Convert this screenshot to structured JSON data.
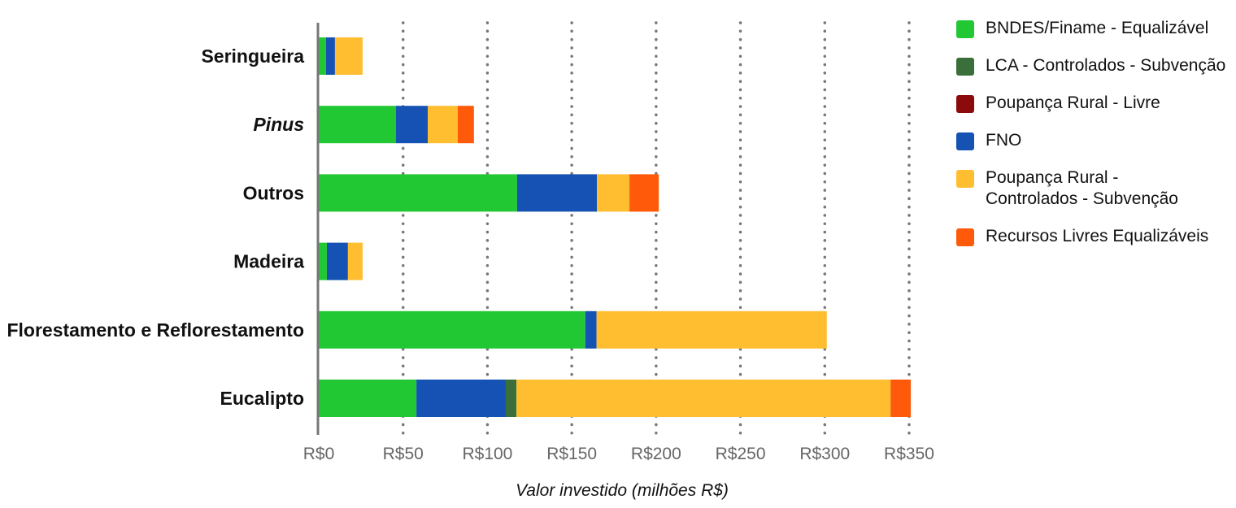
{
  "chart_data": {
    "type": "bar",
    "orientation": "horizontal",
    "stacked": true,
    "categories": [
      "Seringueira",
      "Pinus",
      "Outros",
      "Madeira",
      "Florestamento e Reflorestamento",
      "Eucalipto"
    ],
    "italic_categories": [
      "Pinus"
    ],
    "series": [
      {
        "name": "BNDES/Finame - Equalizável",
        "color": "#22c834",
        "values": [
          4.3,
          45.8,
          117.6,
          4.8,
          158,
          57.9
        ]
      },
      {
        "name": "LCA - Controlados - Subvenção",
        "color": "#3a6e3a",
        "values": [
          0,
          0,
          0,
          0,
          0,
          6.3
        ]
      },
      {
        "name": "Poupança Rural - Livre",
        "color": "#8b0a0a",
        "values": [
          0,
          0,
          0,
          0,
          0,
          0
        ]
      },
      {
        "name": "FNO",
        "color": "#1552b4",
        "values": [
          5.3,
          18.8,
          47.3,
          12.5,
          6.7,
          53
        ]
      },
      {
        "name": "Poupança Rural - Controlados - Subvenção",
        "color": "#ffbd30",
        "values": [
          16.4,
          17.8,
          19.3,
          8.7,
          136.5,
          221.8
        ]
      },
      {
        "name": "Recursos Livres Equalizáveis",
        "color": "#ff5a0a",
        "values": [
          0,
          9.6,
          17.4,
          0,
          0,
          12
        ]
      }
    ],
    "stack_order": [
      0,
      3,
      1,
      2,
      4,
      5
    ],
    "xlabel": "Valor investido (milhões R$)",
    "ylabel": "",
    "xlim": [
      0,
      350
    ],
    "xticks": [
      0,
      50,
      100,
      150,
      200,
      250,
      300,
      350
    ],
    "xtick_labels": [
      "R$0",
      "R$50",
      "R$100",
      "R$150",
      "R$200",
      "R$250",
      "R$300",
      "R$350"
    ],
    "grid": "vertical dotted",
    "legend": "right"
  }
}
